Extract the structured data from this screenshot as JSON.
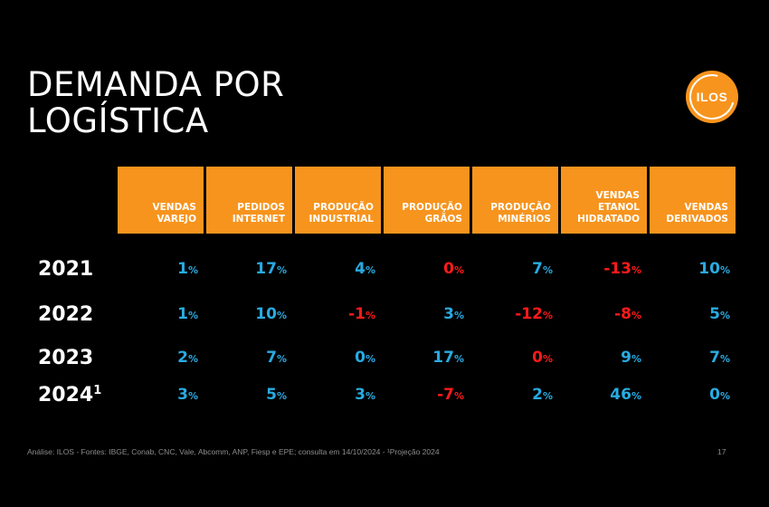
{
  "title": {
    "line1": "DEMANDA POR",
    "line2": "LOGÍSTICA"
  },
  "logo": {
    "text": "ILOS",
    "color": "#f7941d"
  },
  "colors": {
    "header_bg": "#f7941d",
    "positive": "#29abe2",
    "negative": "#ff1a1a"
  },
  "headers": [
    "VENDAS\nVAREJO",
    "PEDIDOS\nINTERNET",
    "PRODUÇÃO\nINDUSTRIAL",
    "PRODUÇÃO\nGRÃOS",
    "PRODUÇÃO\nMINÉRIOS",
    "VENDAS\nETANOL\nHIDRATADO",
    "VENDAS\nDERIVADOS"
  ],
  "rows": [
    {
      "year": "2021",
      "sup": "",
      "values": [
        "1",
        "17",
        "4",
        "0",
        "7",
        "-13",
        "10"
      ],
      "neg": [
        false,
        false,
        false,
        true,
        false,
        true,
        false
      ]
    },
    {
      "year": "2022",
      "sup": "",
      "values": [
        "1",
        "10",
        "-1",
        "3",
        "-12",
        "-8",
        "5"
      ],
      "neg": [
        false,
        false,
        true,
        false,
        true,
        true,
        false
      ]
    },
    {
      "year": "2023",
      "sup": "",
      "values": [
        "2",
        "7",
        "0",
        "17",
        "0",
        "9",
        "7"
      ],
      "neg": [
        false,
        false,
        false,
        false,
        true,
        false,
        false
      ]
    },
    {
      "year": "2024",
      "sup": "1",
      "values": [
        "3",
        "5",
        "3",
        "-7",
        "2",
        "46",
        "0"
      ],
      "neg": [
        false,
        false,
        false,
        true,
        false,
        false,
        false
      ]
    }
  ],
  "unit": "%",
  "footer": "Análise: ILOS - Fontes: IBGE, Conab, CNC, Vale, Abcomm, ANP, Fiesp e EPE; consulta em 14/10/2024 - ¹Projeção 2024",
  "page_number": "17"
}
